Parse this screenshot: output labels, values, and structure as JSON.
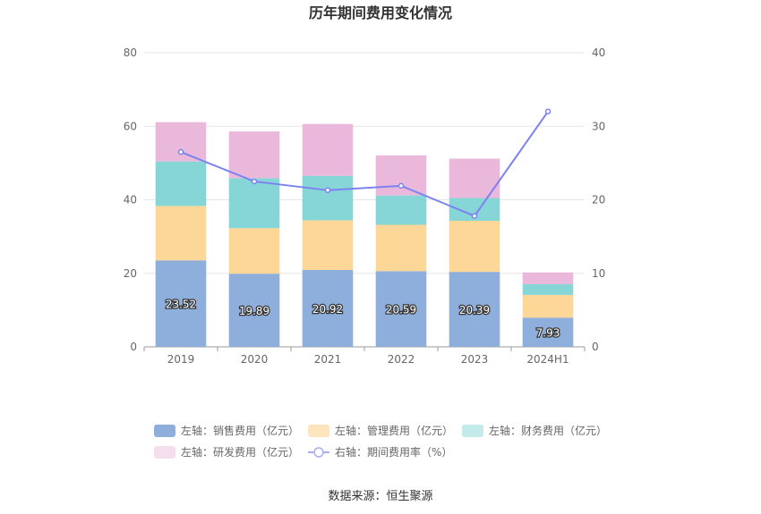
{
  "chart_data": {
    "type": "bar",
    "title": "历年期间费用变化情况",
    "categories": [
      "2019",
      "2020",
      "2021",
      "2022",
      "2023",
      "2024H1"
    ],
    "left_axis": {
      "ylim": [
        0,
        80
      ],
      "ticks": [
        0,
        20,
        40,
        60,
        80
      ]
    },
    "right_axis": {
      "ylim": [
        0,
        40
      ],
      "ticks": [
        0,
        10,
        20,
        30,
        40
      ]
    },
    "stacked": true,
    "grid": true,
    "legend_position": "bottom",
    "series": [
      {
        "name": "左轴：销售费用（亿元）",
        "axis": "left",
        "type": "bar",
        "color": "#8EAEDB",
        "values": [
          23.52,
          19.89,
          20.92,
          20.59,
          20.39,
          7.93
        ],
        "labels_shown": true
      },
      {
        "name": "左轴：管理费用（亿元）",
        "axis": "left",
        "type": "bar",
        "color": "#FDD797",
        "values": [
          14.8,
          12.4,
          13.5,
          12.6,
          13.9,
          6.2
        ]
      },
      {
        "name": "左轴：财务费用（亿元）",
        "axis": "left",
        "type": "bar",
        "color": "#86D6D8",
        "values": [
          12.1,
          13.6,
          12.1,
          8.0,
          6.2,
          2.9
        ]
      },
      {
        "name": "左轴：研发费用（亿元）",
        "axis": "left",
        "type": "bar",
        "color": "#E9B8DA",
        "values": [
          10.7,
          12.7,
          14.1,
          10.9,
          10.7,
          3.2
        ]
      },
      {
        "name": "右轴：期间费用率（%）",
        "axis": "right",
        "type": "line",
        "color": "#7C83F0",
        "values": [
          26.5,
          22.5,
          21.3,
          21.9,
          17.8,
          32.0
        ]
      }
    ],
    "legend_colors": [
      "#8EAEDB",
      "#FDE5BE",
      "#C3EBEC",
      "#F5DFEE",
      "#A9ADF6"
    ]
  },
  "footer": {
    "source": "数据来源：恒生聚源"
  }
}
